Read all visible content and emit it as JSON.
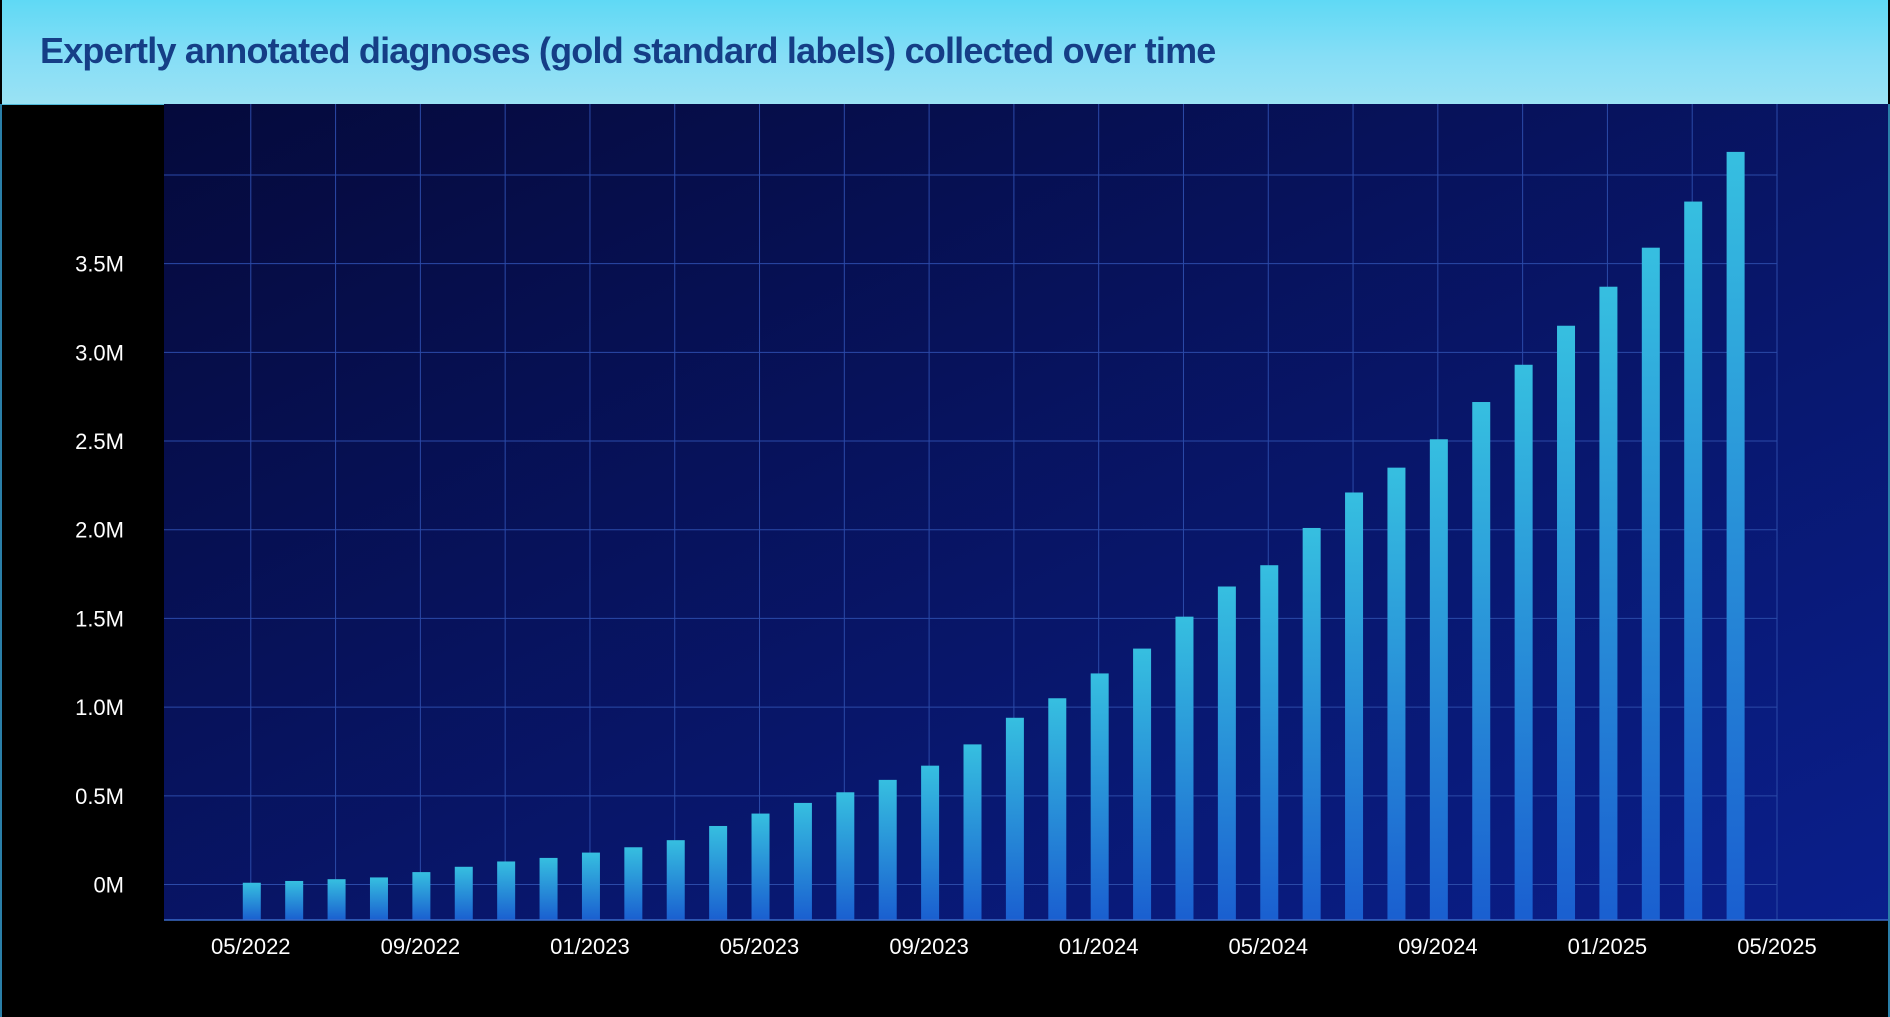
{
  "title": "Expertly annotated diagnoses (gold standard labels) collected over time",
  "colors": {
    "title_text": "#153e86",
    "title_bar": "#6fdcf6",
    "plot_bg_top": "#050a3c",
    "plot_bg_bottom": "#0a1f8c",
    "bar_top": "#36bfe0",
    "bar_bottom": "#1a5fd0",
    "grid": "#2b4aa8"
  },
  "chart_data": {
    "type": "bar",
    "title": "Expertly annotated diagnoses (gold standard labels) collected over time",
    "xlabel": "",
    "ylabel": "",
    "grid": true,
    "legend": "none",
    "x_tick_labels": [
      "05/2022",
      "09/2022",
      "01/2023",
      "05/2023",
      "09/2023",
      "01/2024",
      "05/2024",
      "09/2024",
      "01/2025",
      "05/2025"
    ],
    "y_tick_labels": [
      "0M",
      "0.5M",
      "1.0M",
      "1.5M",
      "2.0M",
      "2.5M",
      "3.0M",
      "3.5M"
    ],
    "y_ticks": [
      0,
      0.5,
      1.0,
      1.5,
      2.0,
      2.5,
      3.0,
      3.5
    ],
    "y_unit": "M",
    "ylim": [
      -0.2,
      4.4
    ],
    "xlim": [
      "2022-03",
      "2025-05"
    ],
    "categories": [
      "2022-05",
      "2022-06",
      "2022-07",
      "2022-08",
      "2022-09",
      "2022-10",
      "2022-11",
      "2022-12",
      "2023-01",
      "2023-02",
      "2023-03",
      "2023-04",
      "2023-05",
      "2023-06",
      "2023-07",
      "2023-08",
      "2023-09",
      "2023-10",
      "2023-11",
      "2023-12",
      "2024-01",
      "2024-02",
      "2024-03",
      "2024-04",
      "2024-05",
      "2024-06",
      "2024-07",
      "2024-08",
      "2024-09",
      "2024-10",
      "2024-11",
      "2024-12",
      "2025-01",
      "2025-02",
      "2025-03",
      "2025-04"
    ],
    "values": [
      0.01,
      0.02,
      0.03,
      0.04,
      0.07,
      0.1,
      0.13,
      0.15,
      0.18,
      0.21,
      0.25,
      0.33,
      0.4,
      0.46,
      0.52,
      0.59,
      0.67,
      0.79,
      0.94,
      1.05,
      1.19,
      1.33,
      1.51,
      1.68,
      1.8,
      2.01,
      2.21,
      2.35,
      2.51,
      2.72,
      2.93,
      3.15,
      3.37,
      3.59,
      3.85,
      4.13
    ]
  }
}
